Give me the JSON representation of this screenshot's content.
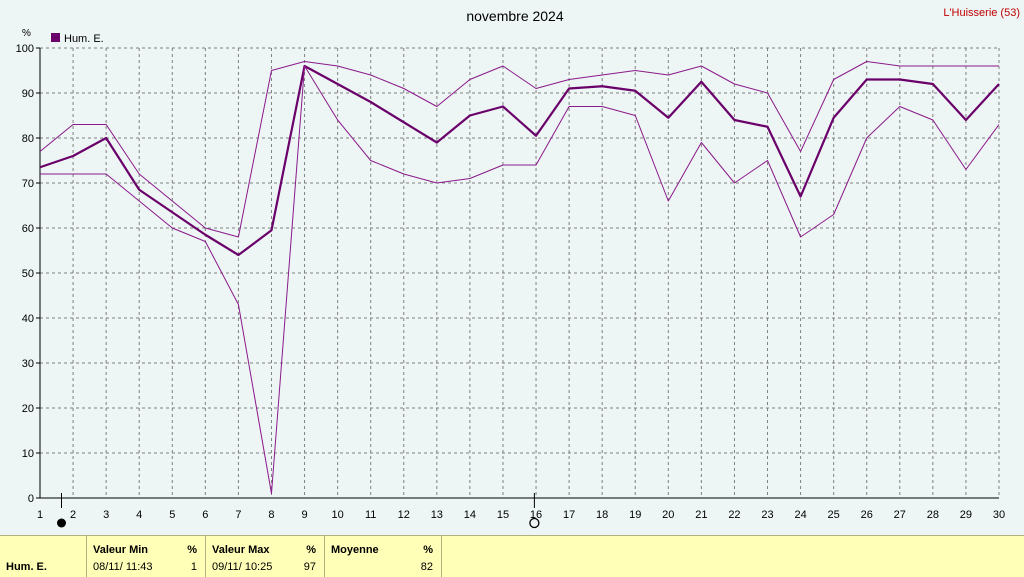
{
  "title": "novembre 2024",
  "station": "L'Huisserie (53)",
  "y_unit": "%",
  "chart_data": {
    "type": "line",
    "x": [
      1,
      2,
      3,
      4,
      5,
      6,
      7,
      8,
      9,
      10,
      11,
      12,
      13,
      14,
      15,
      16,
      17,
      18,
      19,
      20,
      21,
      22,
      23,
      24,
      25,
      26,
      27,
      28,
      29,
      30
    ],
    "xlim": [
      1,
      30
    ],
    "ylim": [
      0,
      100
    ],
    "yticks": [
      0,
      10,
      20,
      30,
      40,
      50,
      60,
      70,
      80,
      90,
      100
    ],
    "grid": true,
    "legend_position": "top-left",
    "legend": [
      "Hum. E."
    ],
    "series": [
      {
        "name": "Hum. E.",
        "role": "mean",
        "color": "#6a006a",
        "values": [
          73.5,
          76,
          80,
          68.5,
          63.5,
          58.5,
          54,
          59.5,
          96,
          92,
          88,
          83.5,
          79,
          85,
          87,
          80.5,
          91,
          91.5,
          90.5,
          84.5,
          92.5,
          84,
          82.5,
          67,
          84.5,
          93,
          93,
          92,
          84,
          92
        ]
      },
      {
        "role": "max",
        "color": "#8a1a8a",
        "values": [
          77,
          83,
          83,
          72,
          66,
          60,
          58,
          95,
          97,
          96,
          94,
          91,
          87,
          93,
          96,
          91,
          93,
          94,
          95,
          94,
          96,
          92,
          90,
          77,
          93,
          97,
          96,
          96,
          96,
          96
        ]
      },
      {
        "role": "min",
        "color": "#8a1a8a",
        "values": [
          72,
          72,
          72,
          66,
          60,
          57,
          43,
          1,
          96,
          84,
          75,
          72,
          70,
          71,
          74,
          74,
          87,
          87,
          85,
          66,
          79,
          70,
          75,
          58,
          63,
          80,
          87,
          84,
          73,
          83
        ]
      }
    ]
  },
  "markers": [
    {
      "day": 1.65,
      "symbol": "filled-circle",
      "name": "new-moon-icon"
    },
    {
      "day": 15.95,
      "symbol": "open-circle",
      "name": "full-moon-icon"
    }
  ],
  "stats": {
    "label": "Hum. E.",
    "min_header": "Valeur Min",
    "min_unit": "%",
    "min_date": "08/11/ 11:43",
    "min_value": "1",
    "max_header": "Valeur Max",
    "max_unit": "%",
    "max_date": "09/11/ 10:25",
    "max_value": "97",
    "avg_header": "Moyenne",
    "avg_unit": "%",
    "avg_value": "82"
  }
}
